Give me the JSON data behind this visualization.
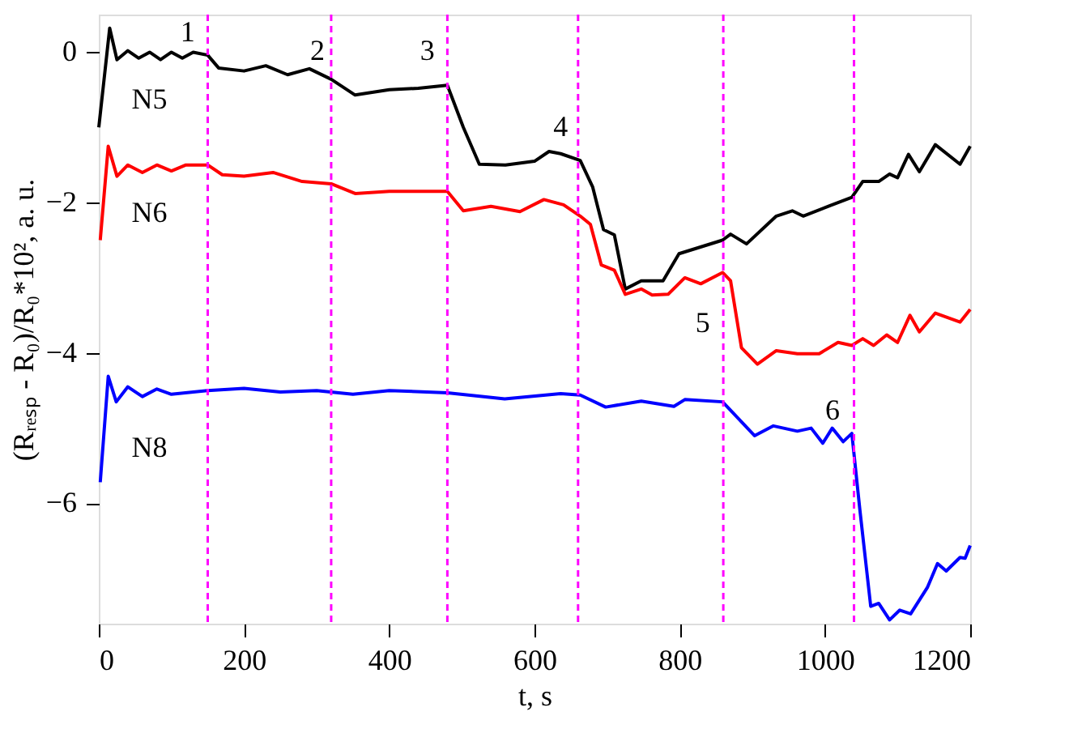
{
  "chart_data": {
    "type": "line",
    "xlabel": "t, s",
    "ylabel": "(Rᵣₑₛₚ - R₀)/R₀*10², a. u.",
    "xlim": [
      0,
      1200
    ],
    "xticks": [
      0,
      200,
      400,
      600,
      800,
      1000,
      1200
    ],
    "ylim": [
      -7.6,
      0.5
    ],
    "yticks": [
      0,
      -2,
      -4,
      -6
    ],
    "grid": false,
    "line_style": "solid",
    "marker": "none",
    "series": [
      {
        "color": "#000000",
        "x": [
          0,
          15,
          25,
          40,
          55,
          70,
          85,
          100,
          115,
          130,
          150,
          165,
          200,
          230,
          260,
          290,
          320,
          353,
          400,
          440,
          480,
          502,
          524,
          560,
          600,
          620,
          636,
          663,
          680,
          695,
          710,
          725,
          747,
          777,
          799,
          859,
          870,
          892,
          933,
          955,
          970,
          1007,
          1037,
          1052,
          1074,
          1089,
          1100,
          1115,
          1130,
          1152,
          1186,
          1200
        ],
        "values": [
          -1.0,
          0.32,
          -0.1,
          0.02,
          -0.08,
          0.0,
          -0.1,
          0.0,
          -0.08,
          0.0,
          -0.04,
          -0.21,
          -0.25,
          -0.18,
          -0.3,
          -0.22,
          -0.36,
          -0.57,
          -0.5,
          -0.48,
          -0.44,
          -1.0,
          -1.49,
          -1.5,
          -1.45,
          -1.32,
          -1.35,
          -1.44,
          -1.79,
          -2.36,
          -2.43,
          -3.15,
          -3.04,
          -3.04,
          -2.68,
          -2.5,
          -2.42,
          -2.55,
          -2.18,
          -2.11,
          -2.18,
          -2.04,
          -1.93,
          -1.72,
          -1.72,
          -1.62,
          -1.67,
          -1.36,
          -1.59,
          -1.23,
          -1.49,
          -1.25
        ]
      },
      {
        "color": "#ff0000",
        "x": [
          2,
          13,
          25,
          40,
          60,
          80,
          100,
          120,
          150,
          170,
          200,
          240,
          280,
          320,
          353,
          400,
          480,
          502,
          540,
          580,
          613,
          640,
          663,
          677,
          692,
          710,
          725,
          747,
          762,
          784,
          807,
          829,
          859,
          870,
          885,
          907,
          933,
          962,
          992,
          1018,
          1037,
          1052,
          1067,
          1085,
          1100,
          1117,
          1130,
          1152,
          1186,
          1200
        ],
        "values": [
          -2.5,
          -1.25,
          -1.65,
          -1.5,
          -1.6,
          -1.5,
          -1.58,
          -1.5,
          -1.5,
          -1.63,
          -1.65,
          -1.6,
          -1.72,
          -1.75,
          -1.88,
          -1.85,
          -1.85,
          -2.11,
          -2.05,
          -2.12,
          -1.96,
          -2.03,
          -2.18,
          -2.29,
          -2.83,
          -2.9,
          -3.22,
          -3.15,
          -3.23,
          -3.22,
          -3.0,
          -3.08,
          -2.93,
          -3.04,
          -3.93,
          -4.15,
          -3.97,
          -4.01,
          -4.01,
          -3.86,
          -3.9,
          -3.81,
          -3.9,
          -3.76,
          -3.86,
          -3.5,
          -3.72,
          -3.47,
          -3.59,
          -3.42
        ]
      },
      {
        "color": "#0000ff",
        "x": [
          2,
          13,
          24,
          40,
          60,
          80,
          100,
          150,
          200,
          250,
          300,
          350,
          400,
          480,
          559,
          636,
          663,
          698,
          747,
          792,
          807,
          859,
          903,
          929,
          962,
          981,
          997,
          1010,
          1025,
          1037,
          1048,
          1063,
          1074,
          1089,
          1103,
          1118,
          1141,
          1155,
          1167,
          1186,
          1193,
          1200
        ],
        "values": [
          -5.72,
          -4.31,
          -4.65,
          -4.45,
          -4.58,
          -4.48,
          -4.55,
          -4.5,
          -4.47,
          -4.52,
          -4.5,
          -4.55,
          -4.5,
          -4.53,
          -4.61,
          -4.54,
          -4.56,
          -4.72,
          -4.64,
          -4.71,
          -4.62,
          -4.65,
          -5.1,
          -4.97,
          -5.04,
          -5.0,
          -5.2,
          -5.0,
          -5.18,
          -5.07,
          -6.08,
          -7.37,
          -7.33,
          -7.55,
          -7.42,
          -7.47,
          -7.12,
          -6.8,
          -6.9,
          -6.72,
          -6.73,
          -6.56
        ]
      }
    ],
    "ref_lines": [
      {
        "axis": "x",
        "value": 150,
        "color": "#ff00ff",
        "line_style": "dashed"
      },
      {
        "axis": "x",
        "value": 320,
        "color": "#ff00ff",
        "line_style": "dashed"
      },
      {
        "axis": "x",
        "value": 480,
        "color": "#ff00ff",
        "line_style": "dashed"
      },
      {
        "axis": "x",
        "value": 660,
        "color": "#ff00ff",
        "line_style": "dashed"
      },
      {
        "axis": "x",
        "value": 860,
        "color": "#ff00ff",
        "line_style": "dashed"
      },
      {
        "axis": "x",
        "value": 1040,
        "color": "#ff00ff",
        "line_style": "dashed"
      }
    ],
    "annotations": [
      "1",
      "2",
      "3",
      "4",
      "5",
      "6",
      "N5",
      "N6",
      "N8"
    ]
  }
}
